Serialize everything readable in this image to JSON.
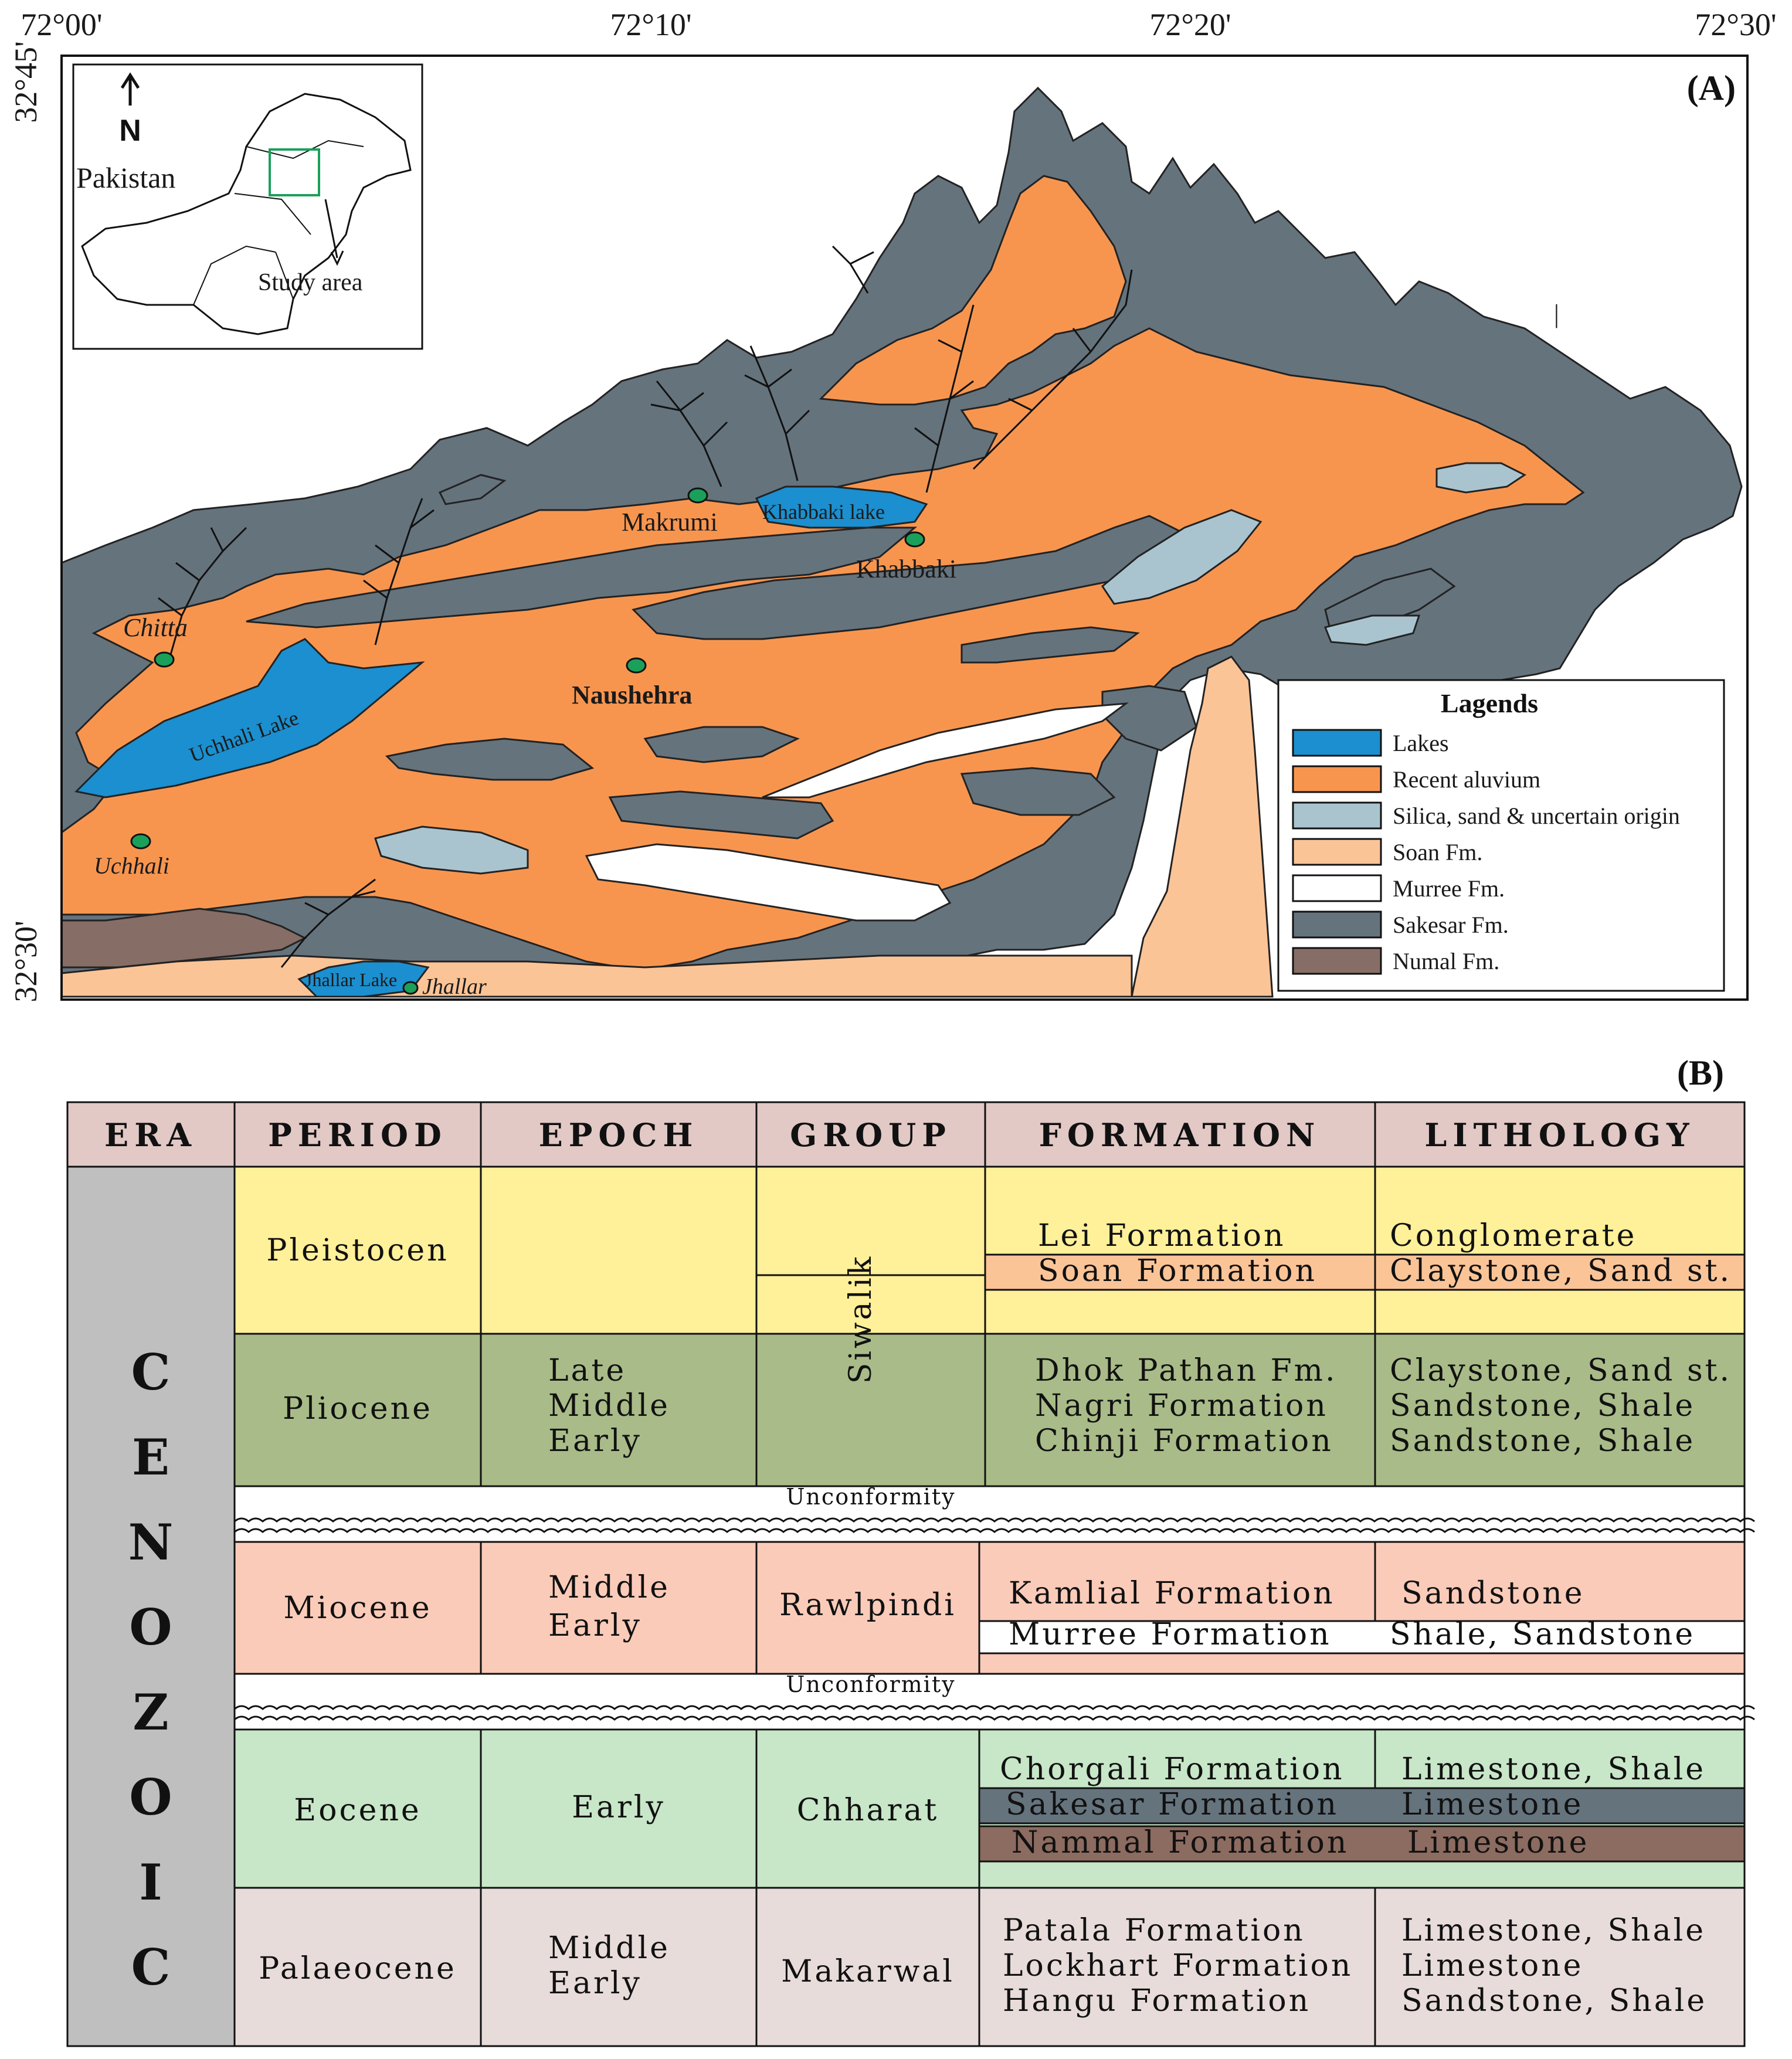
{
  "map": {
    "panel_label": "(A)",
    "longitude_labels": [
      "72°00'",
      "72°10'",
      "72°20'",
      "72°30'"
    ],
    "latitude_labels": [
      "32°45'",
      "32°30'"
    ],
    "inset": {
      "north_label": "N",
      "country_label": "Pakistan",
      "study_area_label": "Study area"
    },
    "places": {
      "makrumi": "Makrumi",
      "khabbaki": "Khabbaki",
      "chitta": "Chitta",
      "naushehra": "Naushehra",
      "uchhali": "Uchhali",
      "jhallar": "Jhallar"
    },
    "lakes": {
      "khabbaki": "Khabbaki lake",
      "uchhali": "Uchhali Lake",
      "jhallar": "Jhallar Lake"
    },
    "legend": {
      "title": "Lagends",
      "items": [
        {
          "label": "Lakes",
          "color": "#1b8fcf"
        },
        {
          "label": "Recent aluvium",
          "color": "#f7954f"
        },
        {
          "label": "Silica, sand & uncertain origin",
          "color": "#a9c4cf"
        },
        {
          "label": "Soan Fm.",
          "color": "#fbc497"
        },
        {
          "label": "Murree Fm.",
          "color": "#ffffff"
        },
        {
          "label": "Sakesar Fm.",
          "color": "#65737d"
        },
        {
          "label": "Numal Fm.",
          "color": "#866d66"
        }
      ]
    }
  },
  "table": {
    "panel_label": "(B)",
    "headers": [
      "ERA",
      "PERIOD",
      "EPOCH",
      "GROUP",
      "FORMATION",
      "LITHOLOGY"
    ],
    "era": "CENOZOIC",
    "era_letters": [
      "C",
      "E",
      "N",
      "O",
      "Z",
      "O",
      "I",
      "C"
    ],
    "rows": [
      {
        "period": "Pleistocen",
        "epoch": [],
        "formations": [
          "Lei Formation",
          "Soan Formation"
        ],
        "lithology": [
          "Conglomerate",
          "Claystone, Sand st."
        ]
      },
      {
        "period": "Pliocene",
        "epoch": [
          "Late",
          "Middle",
          "Early"
        ],
        "formations": [
          "Dhok Pathan Fm.",
          "Nagri Formation",
          "Chinji Formation"
        ],
        "lithology": [
          "Claystone, Sand st.",
          "Sandstone, Shale",
          "Sandstone, Shale"
        ]
      },
      {
        "period": "Miocene",
        "epoch": [
          "Middle",
          "Early"
        ],
        "group": "Rawlpindi",
        "formations": [
          "Kamlial Formation",
          "Murree Formation"
        ],
        "lithology": [
          "Sandstone",
          "Shale, Sandstone"
        ]
      },
      {
        "period": "Eocene",
        "epoch": [
          "Early"
        ],
        "group": "Chharat",
        "formations": [
          "Chorgali Formation",
          "Sakesar Formation",
          "Nammal Formation"
        ],
        "lithology": [
          "Limestone, Shale",
          "Limestone",
          "Limestone"
        ]
      },
      {
        "period": "Palaeocene",
        "epoch": [
          "Middle",
          "Early"
        ],
        "group": "Makarwal",
        "formations": [
          "Patala Formation",
          "Lockhart Formation",
          "Hangu Formation"
        ],
        "lithology": [
          "Limestone, Shale",
          "Limestone",
          "Sandstone, Shale"
        ]
      }
    ],
    "siwalik_group": "Siwalik",
    "unconformity_label": "Unconformity",
    "colors": {
      "header": "#e2c9c6",
      "era": "#bfbfbf",
      "pleistocene": "#fff09a",
      "pliocene": "#a9bb88",
      "miocene": "#fbcbb9",
      "eocene": "#c8e6c8",
      "palaeocene": "#e8dcda",
      "soan_band": "#fbc497",
      "sakesar_band": "#65737d",
      "nammal_band": "#8c6b60"
    }
  }
}
